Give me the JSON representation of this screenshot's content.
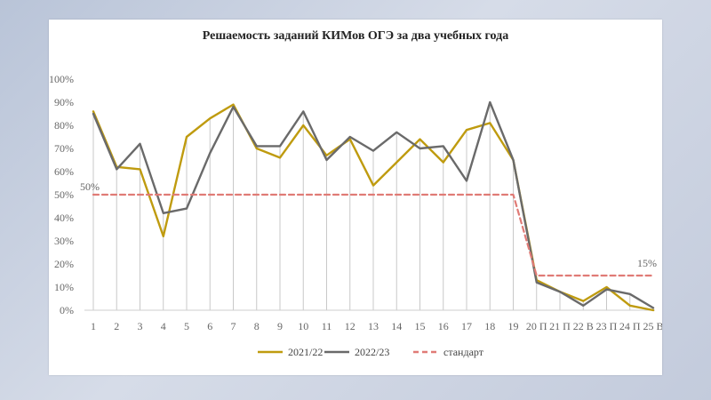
{
  "chart_data": {
    "type": "line",
    "title": "Решаемость заданий КИМов ОГЭ за два учебных года",
    "categories": [
      "1",
      "2",
      "3",
      "4",
      "5",
      "6",
      "7",
      "8",
      "9",
      "10",
      "11",
      "12",
      "13",
      "14",
      "15",
      "16",
      "17",
      "18",
      "19",
      "20 П",
      "21 П",
      "22 В",
      "23 П",
      "24 П",
      "25 В"
    ],
    "yticks": [
      "0%",
      "10%",
      "20%",
      "30%",
      "40%",
      "50%",
      "60%",
      "70%",
      "80%",
      "90%",
      "100%"
    ],
    "ylim": [
      0,
      100
    ],
    "series": [
      {
        "name": "2021/22",
        "color": "#bf9b0f",
        "style": "solid",
        "values": [
          86,
          62,
          61,
          32,
          75,
          83,
          89,
          70,
          66,
          80,
          67,
          74,
          54,
          64,
          74,
          64,
          78,
          81,
          65,
          13,
          8,
          4,
          10,
          2,
          0
        ]
      },
      {
        "name": "2022/23",
        "color": "#6a6a6a",
        "style": "solid",
        "values": [
          85,
          61,
          72,
          42,
          44,
          68,
          88,
          71,
          71,
          86,
          65,
          75,
          69,
          77,
          70,
          71,
          56,
          90,
          65,
          12,
          8,
          2,
          9,
          7,
          1
        ]
      },
      {
        "name": "стандарт",
        "color": "#e07b76",
        "style": "dashed",
        "values": [
          50,
          50,
          50,
          50,
          50,
          50,
          50,
          50,
          50,
          50,
          50,
          50,
          50,
          50,
          50,
          50,
          50,
          50,
          50,
          15,
          15,
          15,
          15,
          15,
          15
        ]
      }
    ],
    "annotations": [
      "50%",
      "15%"
    ],
    "legend_position": "bottom",
    "vertical_drop_lines": true
  }
}
